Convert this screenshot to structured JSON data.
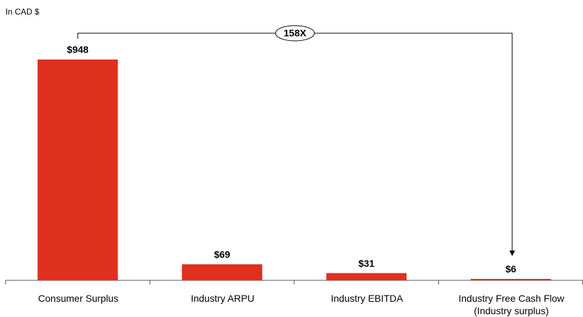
{
  "chart_data": {
    "type": "bar",
    "subtitle": "In CAD $",
    "categories": [
      "Consumer Surplus",
      "Industry ARPU",
      "Industry EBITDA",
      "Industry Free Cash Flow\n(Industry surplus)"
    ],
    "values": [
      948,
      69,
      31,
      6
    ],
    "value_labels": [
      "$948",
      "$69",
      "$31",
      "$6"
    ],
    "color": "#e0301e",
    "annotation": "158X"
  }
}
